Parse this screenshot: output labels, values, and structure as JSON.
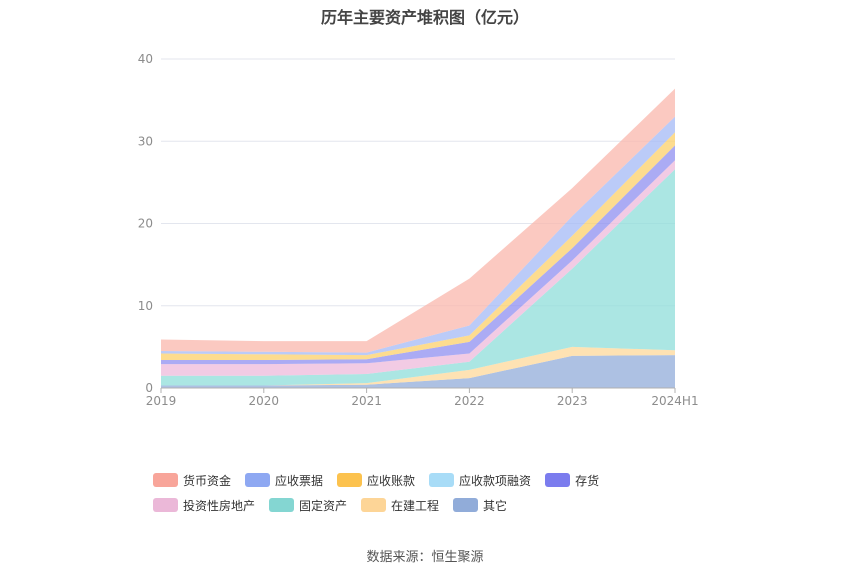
{
  "chart_data": {
    "type": "area",
    "stacked": true,
    "title": "历年主要资产堆积图（亿元）",
    "categories": [
      "2019",
      "2020",
      "2021",
      "2022",
      "2023",
      "2024H1"
    ],
    "ylim": [
      0,
      40
    ],
    "yticks": [
      0,
      10,
      20,
      30,
      40
    ],
    "grid": true,
    "legend_position": "bottom",
    "series": [
      {
        "name": "其它",
        "color": "#91acd9",
        "values": [
          0.3,
          0.3,
          0.4,
          1.2,
          3.9,
          4.0
        ]
      },
      {
        "name": "在建工程",
        "color": "#fdd89a",
        "values": [
          0.0,
          0.0,
          0.2,
          1.0,
          1.1,
          0.6
        ]
      },
      {
        "name": "固定资产",
        "color": "#8fddd9",
        "values": [
          1.2,
          1.2,
          1.1,
          1.0,
          9.5,
          22.0
        ]
      },
      {
        "name": "投资性房地产",
        "color": "#edbadb",
        "values": [
          1.4,
          1.4,
          1.3,
          1.0,
          1.0,
          1.1
        ]
      },
      {
        "name": "存货",
        "color": "#8f8ff0",
        "values": [
          0.5,
          0.5,
          0.5,
          1.4,
          1.5,
          1.8
        ]
      },
      {
        "name": "应收款项融资",
        "color": "#b5e2f8",
        "values": [
          0.0,
          0.0,
          0.0,
          0.0,
          0.0,
          0.0
        ]
      },
      {
        "name": "应收账款",
        "color": "#fcd06a",
        "values": [
          0.8,
          0.7,
          0.5,
          0.8,
          1.5,
          1.6
        ]
      },
      {
        "name": "应收票据",
        "color": "#a4b9f5",
        "values": [
          0.3,
          0.3,
          0.3,
          1.2,
          2.4,
          1.9
        ]
      },
      {
        "name": "货币资金",
        "color": "#f9b7ac",
        "values": [
          1.4,
          1.3,
          1.4,
          5.7,
          3.4,
          3.4
        ]
      }
    ]
  },
  "legend": {
    "items": [
      {
        "label": "货币资金",
        "color": "#f8a59a"
      },
      {
        "label": "应收票据",
        "color": "#8ea8f2"
      },
      {
        "label": "应收账款",
        "color": "#fcc24e"
      },
      {
        "label": "应收款项融资",
        "color": "#a8dcf7"
      },
      {
        "label": "存货",
        "color": "#7b7cee"
      },
      {
        "label": "投资性房地产",
        "color": "#ebb8d8"
      },
      {
        "label": "固定资产",
        "color": "#84d6d2"
      },
      {
        "label": "在建工程",
        "color": "#fdd597"
      },
      {
        "label": "其它",
        "color": "#91acd9"
      }
    ]
  },
  "footer": {
    "source": "数据来源：恒生聚源"
  }
}
